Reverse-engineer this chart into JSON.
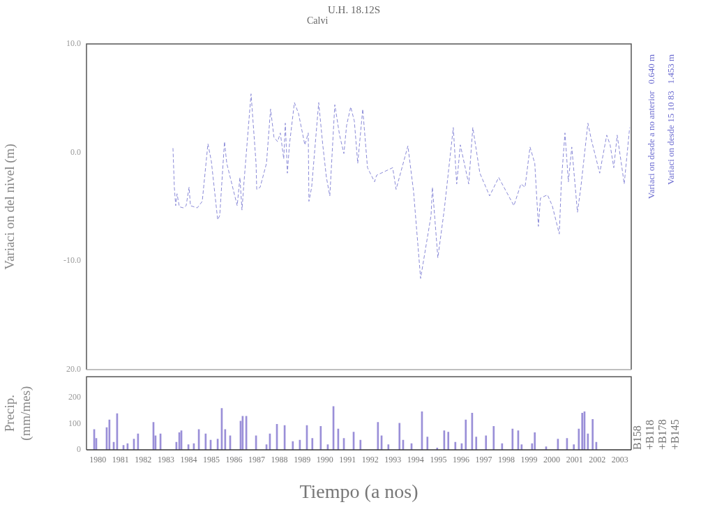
{
  "chart_data": [
    {
      "type": "line",
      "title": "U.H. 18.12S",
      "subtitle": "Calvi",
      "ylabel": "Variaci on del nivel (m)",
      "color": "#8a8ad8",
      "marker": "none",
      "line_style": "dashed",
      "xlim": [
        1980,
        2004
      ],
      "ylim": [
        -20,
        10
      ],
      "yticks": [
        {
          "value": 10,
          "label": "10.0"
        },
        {
          "value": 0,
          "label": "0.0"
        },
        {
          "value": -10,
          "label": "-10.0"
        },
        {
          "value": -20,
          "label": "20.0"
        }
      ],
      "tick_labels": "y",
      "x": [
        1983.81,
        1983.87,
        1983.93,
        1983.99,
        1984.09,
        1984.27,
        1984.39,
        1984.52,
        1984.58,
        1984.88,
        1985.1,
        1985.35,
        1985.5,
        1985.78,
        1985.87,
        1986.08,
        1986.18,
        1986.64,
        1986.76,
        1986.85,
        1986.94,
        1987.25,
        1987.47,
        1987.5,
        1987.65,
        1987.93,
        1988.11,
        1988.26,
        1988.42,
        1988.54,
        1988.69,
        1988.76,
        1988.85,
        1988.94,
        1989.16,
        1989.34,
        1989.62,
        1989.77,
        1989.8,
        1989.92,
        1990.23,
        1990.41,
        1990.57,
        1990.72,
        1990.94,
        1991.15,
        1991.34,
        1991.46,
        1991.64,
        1991.8,
        1991.95,
        1992.17,
        1992.38,
        1992.69,
        1992.78,
        1993.49,
        1993.64,
        1994.16,
        1994.41,
        1994.72,
        1995.18,
        1995.24,
        1995.48,
        1995.76,
        1996.16,
        1996.31,
        1996.47,
        1996.84,
        1997.02,
        1997.33,
        1997.76,
        1998.16,
        1998.83,
        1999.14,
        1999.32,
        1999.54,
        1999.75,
        1999.91,
        2000.0,
        2000.31,
        2000.52,
        2000.83,
        2000.92,
        2001.08,
        2001.23,
        2001.38,
        2001.63,
        2001.78,
        2002.09,
        2002.24,
        2002.61,
        2002.92,
        2003.07,
        2003.23,
        2003.38,
        2003.59,
        2003.69,
        2003.93
      ],
      "values": [
        0.4,
        -3.2,
        -4.9,
        -3.8,
        -5.0,
        -5.1,
        -4.9,
        -3.2,
        -4.9,
        -5.1,
        -4.5,
        0.8,
        -0.8,
        -6.2,
        -5.8,
        1.0,
        -1.0,
        -4.9,
        -2.3,
        -5.3,
        -2.7,
        5.4,
        -1.0,
        -3.4,
        -3.2,
        -1.0,
        4.0,
        1.4,
        1.0,
        1.8,
        -0.6,
        2.7,
        -1.9,
        0.7,
        4.6,
        3.6,
        0.7,
        1.8,
        -4.5,
        -3.2,
        4.6,
        0.7,
        -2.3,
        -4.0,
        4.4,
        1.6,
        -0.1,
        2.5,
        4.2,
        2.9,
        -1.0,
        4.0,
        -1.4,
        -2.7,
        -2.1,
        -1.4,
        -3.4,
        0.6,
        -3.6,
        -11.6,
        -5.8,
        -3.2,
        -9.7,
        -5.3,
        2.3,
        -2.9,
        0.7,
        -2.9,
        2.3,
        -1.9,
        -4.0,
        -2.3,
        -4.9,
        -2.9,
        -3.2,
        0.5,
        -1.0,
        -6.8,
        -4.2,
        -3.9,
        -4.9,
        -7.5,
        -2.7,
        1.8,
        -2.7,
        0.5,
        -5.5,
        -3.2,
        2.7,
        1.2,
        -1.9,
        1.6,
        0.7,
        -1.4,
        1.6,
        -1.4,
        -2.9,
        2.3
      ],
      "annotations": [
        "Variaci on desde a no anterior   0.640 m",
        "Variaci on desde 15 10 83   1.453 m"
      ]
    },
    {
      "type": "bar",
      "ylabel": "Precip.\n(mm/mes)",
      "xlabel": "Tiempo (a nos)",
      "color": "#9a8fd8",
      "xlim": [
        1980,
        2004
      ],
      "ylim": [
        0,
        280
      ],
      "yticks": [
        0,
        100,
        200
      ],
      "xticks": [
        {
          "value": 1980.5,
          "label": "1980"
        },
        {
          "value": 1981.5,
          "label": "1981"
        },
        {
          "value": 1982.5,
          "label": "1982"
        },
        {
          "value": 1983.5,
          "label": "1983"
        },
        {
          "value": 1984.5,
          "label": "1984"
        },
        {
          "value": 1985.5,
          "label": "1985"
        },
        {
          "value": 1986.5,
          "label": "1986"
        },
        {
          "value": 1987.5,
          "label": "1987"
        },
        {
          "value": 1988.5,
          "label": "1988"
        },
        {
          "value": 1989.5,
          "label": "1989"
        },
        {
          "value": 1990.5,
          "label": "1990"
        },
        {
          "value": 1991.5,
          "label": "1991"
        },
        {
          "value": 1992.5,
          "label": "1992"
        },
        {
          "value": 1993.5,
          "label": "1993"
        },
        {
          "value": 1994.5,
          "label": "1994"
        },
        {
          "value": 1995.5,
          "label": "1995"
        },
        {
          "value": 1996.5,
          "label": "1996"
        },
        {
          "value": 1997.5,
          "label": "1997"
        },
        {
          "value": 1998.5,
          "label": "1998"
        },
        {
          "value": 1999.5,
          "label": "1999"
        },
        {
          "value": 2000.5,
          "label": "2000"
        },
        {
          "value": 2001.5,
          "label": "2001"
        },
        {
          "value": 2002.5,
          "label": "2002"
        },
        {
          "value": 2003.5,
          "label": "2003"
        }
      ],
      "x": [
        1980.34,
        1980.43,
        1980.89,
        1981.01,
        1981.2,
        1981.35,
        1981.63,
        1981.81,
        1982.09,
        1982.27,
        1982.95,
        1983.04,
        1983.26,
        1983.96,
        1984.09,
        1984.18,
        1984.49,
        1984.73,
        1984.95,
        1985.25,
        1985.47,
        1985.78,
        1985.96,
        1986.11,
        1986.33,
        1986.79,
        1986.88,
        1987.04,
        1987.47,
        1987.93,
        1988.08,
        1988.39,
        1988.73,
        1989.09,
        1989.4,
        1989.71,
        1989.95,
        1990.32,
        1990.63,
        1990.88,
        1991.09,
        1991.34,
        1991.77,
        1992.07,
        1992.84,
        1993.0,
        1993.3,
        1993.79,
        1993.95,
        1994.32,
        1994.78,
        1995.02,
        1995.45,
        1995.76,
        1995.94,
        1996.25,
        1996.53,
        1996.71,
        1996.99,
        1997.17,
        1997.6,
        1997.94,
        1998.31,
        1998.77,
        1999.02,
        1999.17,
        1999.63,
        1999.75,
        2000.25,
        2000.77,
        2001.17,
        2001.47,
        2001.69,
        2001.84,
        2001.94,
        2002.09,
        2002.3,
        2002.46
      ],
      "values": [
        78,
        44,
        85,
        115,
        29,
        139,
        17,
        24,
        41,
        61,
        105,
        54,
        61,
        29,
        66,
        73,
        20,
        24,
        78,
        61,
        37,
        41,
        159,
        78,
        54,
        110,
        129,
        129,
        54,
        20,
        61,
        98,
        93,
        32,
        37,
        93,
        44,
        90,
        20,
        166,
        80,
        44,
        68,
        37,
        105,
        54,
        20,
        102,
        37,
        24,
        146,
        49,
        7,
        73,
        68,
        29,
        24,
        115,
        141,
        49,
        54,
        90,
        24,
        80,
        73,
        20,
        24,
        66,
        12,
        41,
        44,
        20,
        80,
        141,
        146,
        61,
        117,
        29
      ],
      "annotations": [
        "B158",
        "+B118",
        "+B178",
        "+B145"
      ]
    }
  ]
}
